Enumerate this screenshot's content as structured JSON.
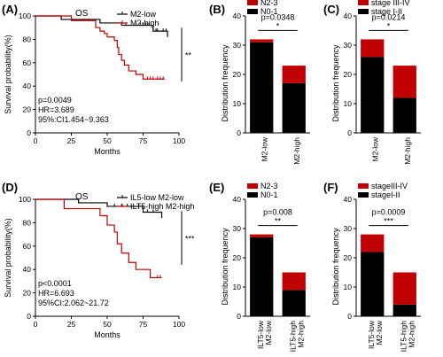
{
  "colors": {
    "low": "#000000",
    "high": "#c00000",
    "bar_dark": "#000000",
    "bar_red": "#c00000"
  },
  "chart_data": [
    {
      "id": "A",
      "type": "line",
      "panel_label": "(A)",
      "title": "OS",
      "xlabel": "Months",
      "ylabel": "Survival probability(%)",
      "xlim": [
        0,
        100
      ],
      "ylim": [
        0,
        100
      ],
      "xticks": [
        0,
        25,
        50,
        75,
        100
      ],
      "yticks": [
        0,
        20,
        40,
        60,
        80,
        100
      ],
      "significance": "**",
      "stats": [
        "p=0.0049",
        "HR=3.689",
        "95%:CI1.454~9.363"
      ],
      "series": [
        {
          "name": "M2-low",
          "color": "#000000",
          "x": [
            0,
            15,
            18,
            30,
            45,
            55,
            60,
            78,
            82,
            92
          ],
          "y": [
            100,
            100,
            97,
            97,
            94,
            94,
            92,
            92,
            87,
            82
          ],
          "censor_x": [
            63,
            70,
            73,
            75,
            77,
            79,
            84,
            85,
            89,
            91
          ]
        },
        {
          "name": "M2-high",
          "color": "#c00000",
          "x": [
            0,
            15,
            25,
            38,
            42,
            45,
            48,
            50,
            55,
            57,
            58,
            60,
            62,
            65,
            70,
            75,
            90
          ],
          "y": [
            100,
            100,
            96,
            96,
            90,
            87,
            85,
            82,
            79,
            73,
            67,
            62,
            58,
            53,
            50,
            46,
            46
          ],
          "censor_x": [
            78,
            80,
            82,
            85,
            87,
            89
          ]
        }
      ]
    },
    {
      "id": "B",
      "type": "bar",
      "panel_label": "(B)",
      "xlabel": "",
      "ylabel": "Distribution frequency",
      "ylim": [
        0,
        40
      ],
      "categories": [
        "M2-low",
        "M2-high"
      ],
      "series": [
        {
          "name": "N0-1",
          "color": "#000000",
          "values": [
            31,
            17
          ]
        },
        {
          "name": "N2-3",
          "color": "#c00000",
          "values": [
            1,
            6
          ]
        }
      ],
      "p_value": "p=0.0348",
      "significance": "*"
    },
    {
      "id": "C",
      "type": "bar",
      "panel_label": "(C)",
      "xlabel": "",
      "ylabel": "Distribution frequency",
      "ylim": [
        0,
        40
      ],
      "categories": [
        "M2-low",
        "M2-high"
      ],
      "series": [
        {
          "name": "stage I-II",
          "color": "#000000",
          "values": [
            26,
            12
          ]
        },
        {
          "name": "stage III-IV",
          "color": "#c00000",
          "values": [
            6,
            11
          ]
        }
      ],
      "p_value": "p=0.0214",
      "significance": "*"
    },
    {
      "id": "D",
      "type": "line",
      "panel_label": "(D)",
      "title": "OS",
      "xlabel": "Months",
      "ylabel": "Survival probability(%)",
      "xlim": [
        0,
        100
      ],
      "ylim": [
        0,
        100
      ],
      "xticks": [
        0,
        25,
        50,
        75,
        100
      ],
      "yticks": [
        0,
        20,
        40,
        60,
        80,
        100
      ],
      "significance": "***",
      "stats": [
        "p<0.0001",
        "HR=6.693",
        "95%CI:2.062~21.72"
      ],
      "series": [
        {
          "name": "IL5-low M2-low",
          "color": "#000000",
          "x": [
            0,
            20,
            30,
            40,
            50,
            68,
            75,
            85,
            88
          ],
          "y": [
            100,
            100,
            97,
            97,
            94,
            94,
            89,
            89,
            84
          ],
          "censor_x": [
            55,
            60,
            64,
            72,
            78,
            82
          ]
        },
        {
          "name": "ILT5-high M2-high",
          "color": "#c00000",
          "x": [
            0,
            10,
            20,
            35,
            45,
            50,
            55,
            57,
            60,
            65,
            70,
            75,
            80,
            88
          ],
          "y": [
            100,
            100,
            92,
            92,
            86,
            78,
            72,
            62,
            54,
            46,
            40,
            40,
            33,
            33
          ],
          "censor_x": [
            85,
            87
          ]
        }
      ]
    },
    {
      "id": "E",
      "type": "bar",
      "panel_label": "(E)",
      "xlabel": "",
      "ylabel": "Distribution frequency",
      "ylim": [
        0,
        40
      ],
      "categories": [
        "ILT5-low\nM2-low",
        "ILT5-high\nM2-high"
      ],
      "series": [
        {
          "name": "N0-1",
          "color": "#000000",
          "values": [
            27,
            9
          ]
        },
        {
          "name": "N2-3",
          "color": "#c00000",
          "values": [
            1,
            6
          ]
        }
      ],
      "p_value": "p=0.008",
      "significance": "**"
    },
    {
      "id": "F",
      "type": "bar",
      "panel_label": "(F)",
      "xlabel": "",
      "ylabel": "Distribution frequency",
      "ylim": [
        0,
        40
      ],
      "categories": [
        "ILT5-low\nM2-low",
        "ILT5-high\nM2-high"
      ],
      "series": [
        {
          "name": "stageI-II",
          "color": "#000000",
          "values": [
            22,
            4
          ]
        },
        {
          "name": "stageIII-IV",
          "color": "#c00000",
          "values": [
            6,
            11
          ]
        }
      ],
      "p_value": "p=0.0009",
      "significance": "***"
    }
  ]
}
